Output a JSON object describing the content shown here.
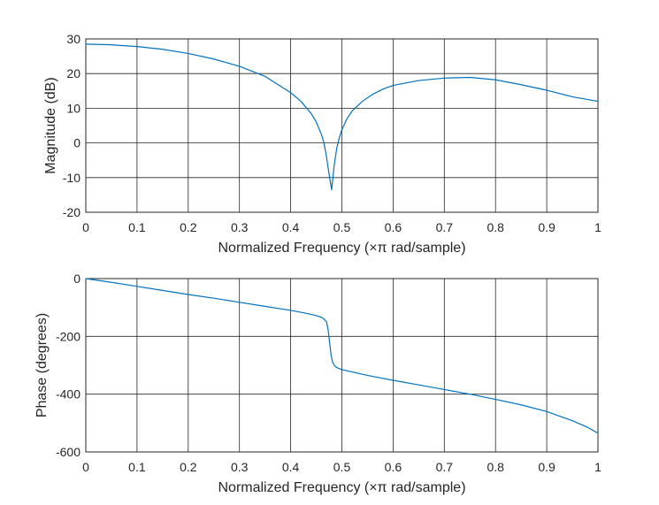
{
  "chart_data": [
    {
      "type": "line",
      "xlabel": "Normalized Frequency  (×π rad/sample)",
      "ylabel": "Magnitude (dB)",
      "xlim": [
        0,
        1
      ],
      "ylim": [
        -20,
        30
      ],
      "xticks": [
        0,
        0.1,
        0.2,
        0.3,
        0.4,
        0.5,
        0.6,
        0.7,
        0.8,
        0.9,
        1
      ],
      "xtick_labels": [
        "0",
        "0.1",
        "0.2",
        "0.3",
        "0.4",
        "0.5",
        "0.6",
        "0.7",
        "0.8",
        "0.9",
        "1"
      ],
      "yticks": [
        -20,
        -10,
        0,
        10,
        20,
        30
      ],
      "ytick_labels": [
        "-20",
        "-10",
        "0",
        "10",
        "20",
        "30"
      ],
      "grid": true,
      "line_color": "#0072BD",
      "series": [
        {
          "x": [
            0,
            0.05,
            0.1,
            0.15,
            0.2,
            0.25,
            0.3,
            0.35,
            0.4,
            0.42,
            0.44,
            0.45,
            0.46,
            0.465,
            0.47,
            0.475,
            0.48,
            0.485,
            0.49,
            0.495,
            0.5,
            0.51,
            0.52,
            0.54,
            0.56,
            0.58,
            0.6,
            0.65,
            0.7,
            0.75,
            0.8,
            0.85,
            0.9,
            0.95,
            1
          ],
          "y": [
            28.5,
            28.3,
            27.8,
            27,
            25.8,
            24.2,
            22.1,
            19.2,
            14.5,
            12,
            8.5,
            6,
            2.5,
            0,
            -4,
            -9,
            -13.5,
            -6.5,
            -1.5,
            1.5,
            3.8,
            7,
            9.2,
            12,
            14,
            15.5,
            16.6,
            18,
            18.7,
            18.9,
            18.2,
            16.8,
            15.2,
            13.3,
            12
          ]
        }
      ]
    },
    {
      "type": "line",
      "xlabel": "Normalized Frequency  (×π rad/sample)",
      "ylabel": "Phase (degrees)",
      "xlim": [
        0,
        1
      ],
      "ylim": [
        -600,
        0
      ],
      "xticks": [
        0,
        0.1,
        0.2,
        0.3,
        0.4,
        0.5,
        0.6,
        0.7,
        0.8,
        0.9,
        1
      ],
      "xtick_labels": [
        "0",
        "0.1",
        "0.2",
        "0.3",
        "0.4",
        "0.5",
        "0.6",
        "0.7",
        "0.8",
        "0.9",
        "1"
      ],
      "yticks": [
        -600,
        -400,
        -200,
        0
      ],
      "ytick_labels": [
        "-600",
        "-400",
        "-200",
        "0"
      ],
      "grid": true,
      "line_color": "#0072BD",
      "series": [
        {
          "x": [
            0,
            0.05,
            0.1,
            0.15,
            0.2,
            0.25,
            0.3,
            0.35,
            0.4,
            0.43,
            0.45,
            0.46,
            0.465,
            0.47,
            0.473,
            0.476,
            0.479,
            0.482,
            0.486,
            0.49,
            0.5,
            0.55,
            0.6,
            0.65,
            0.7,
            0.75,
            0.8,
            0.85,
            0.9,
            0.95,
            0.98,
            1
          ],
          "y": [
            0,
            -13,
            -27,
            -41,
            -55,
            -68,
            -82,
            -96,
            -110,
            -120,
            -128,
            -134,
            -140,
            -150,
            -175,
            -220,
            -265,
            -290,
            -302,
            -308,
            -315,
            -335,
            -352,
            -368,
            -384,
            -400,
            -418,
            -437,
            -460,
            -492,
            -515,
            -535
          ]
        }
      ]
    }
  ]
}
